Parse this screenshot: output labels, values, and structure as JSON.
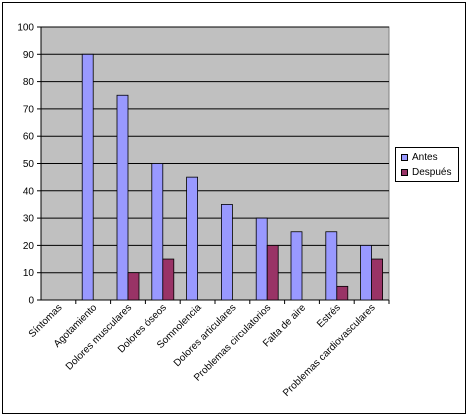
{
  "chart_data": {
    "type": "bar",
    "categories": [
      "Síntomas",
      "Agotamiento",
      "Dolores musculares",
      "Dolores óseos",
      "Somnolencia",
      "Dolores articulares",
      "Problemas circulatorios",
      "Falta de aire",
      "Estrés",
      "Problemas cardiovasculares"
    ],
    "series": [
      {
        "name": "Antes",
        "color": "#9999ff",
        "values": [
          0,
          90,
          75,
          50,
          45,
          35,
          30,
          25,
          25,
          20
        ]
      },
      {
        "name": "Después",
        "color": "#993366",
        "values": [
          0,
          0,
          10,
          15,
          0,
          0,
          20,
          0,
          5,
          15
        ]
      }
    ],
    "ylim": [
      0,
      100
    ],
    "yticks": [
      "0",
      "10",
      "20",
      "30",
      "40",
      "50",
      "60",
      "70",
      "80",
      "90",
      "100"
    ],
    "grid": true,
    "plot_background": "#c0c0c0",
    "legend_position": "right"
  }
}
